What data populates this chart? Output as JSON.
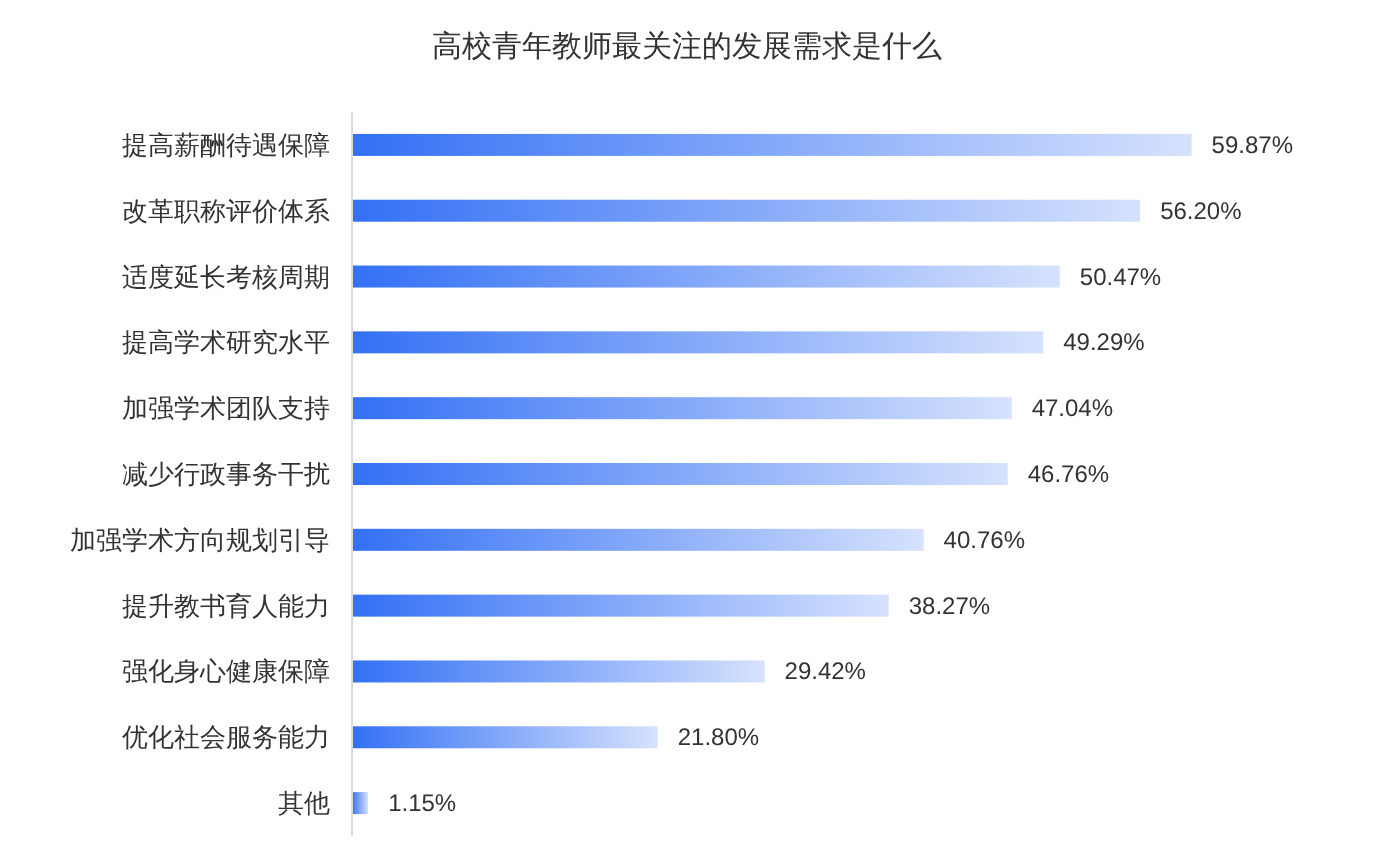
{
  "chart_data": {
    "type": "bar",
    "orientation": "horizontal",
    "title": "高校青年教师最关注的发展需求是什么",
    "categories": [
      "提高薪酬待遇保障",
      "改革职称评价体系",
      "适度延长考核周期",
      "提高学术研究水平",
      "加强学术团队支持",
      "减少行政事务干扰",
      "加强学术方向规划引导",
      "提升教书育人能力",
      "强化身心健康保障",
      "优化社会服务能力",
      "其他"
    ],
    "values": [
      59.87,
      56.2,
      50.47,
      49.29,
      47.04,
      46.76,
      40.76,
      38.27,
      29.42,
      21.8,
      1.15
    ],
    "value_labels": [
      "59.87%",
      "56.20%",
      "50.47%",
      "49.29%",
      "47.04%",
      "46.76%",
      "40.76%",
      "38.27%",
      "29.42%",
      "21.80%",
      "1.15%"
    ],
    "color": "#3370f5",
    "tick_labels": "y"
  }
}
